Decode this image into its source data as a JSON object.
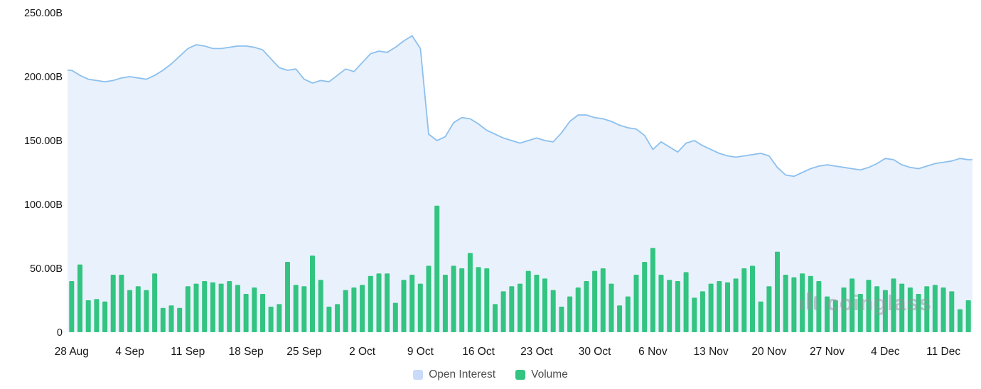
{
  "watermark": {
    "text": "coinglass"
  },
  "chart_data": {
    "type": "area",
    "title": "",
    "xlabel": "",
    "ylabel": "",
    "unit": "B",
    "grid": false,
    "legend_position": "bottom",
    "ylim": [
      0,
      250
    ],
    "y_ticks": [
      "250.00B",
      "200.00B",
      "150.00B",
      "100.00B",
      "50.00B",
      "0"
    ],
    "y_tick_values": [
      250,
      200,
      150,
      100,
      50,
      0
    ],
    "x_tick_labels": [
      "28 Aug",
      "4 Sep",
      "11 Sep",
      "18 Sep",
      "25 Sep",
      "2 Oct",
      "9 Oct",
      "16 Oct",
      "23 Oct",
      "30 Oct",
      "6 Nov",
      "13 Nov",
      "20 Nov",
      "27 Nov",
      "4 Dec",
      "11 Dec"
    ],
    "x_tick_indices": [
      0,
      7,
      14,
      21,
      28,
      35,
      42,
      49,
      56,
      63,
      70,
      77,
      84,
      91,
      98,
      105
    ],
    "x": [
      "28 Aug",
      "29 Aug",
      "30 Aug",
      "31 Aug",
      "1 Sep",
      "2 Sep",
      "3 Sep",
      "4 Sep",
      "5 Sep",
      "6 Sep",
      "7 Sep",
      "8 Sep",
      "9 Sep",
      "10 Sep",
      "11 Sep",
      "12 Sep",
      "13 Sep",
      "14 Sep",
      "15 Sep",
      "16 Sep",
      "17 Sep",
      "18 Sep",
      "19 Sep",
      "20 Sep",
      "21 Sep",
      "22 Sep",
      "23 Sep",
      "24 Sep",
      "25 Sep",
      "26 Sep",
      "27 Sep",
      "28 Sep",
      "29 Sep",
      "30 Sep",
      "1 Oct",
      "2 Oct",
      "3 Oct",
      "4 Oct",
      "5 Oct",
      "6 Oct",
      "7 Oct",
      "8 Oct",
      "9 Oct",
      "10 Oct",
      "11 Oct",
      "12 Oct",
      "13 Oct",
      "14 Oct",
      "15 Oct",
      "16 Oct",
      "17 Oct",
      "18 Oct",
      "19 Oct",
      "20 Oct",
      "21 Oct",
      "22 Oct",
      "23 Oct",
      "24 Oct",
      "25 Oct",
      "26 Oct",
      "27 Oct",
      "28 Oct",
      "29 Oct",
      "30 Oct",
      "31 Oct",
      "1 Nov",
      "2 Nov",
      "3 Nov",
      "4 Nov",
      "5 Nov",
      "6 Nov",
      "7 Nov",
      "8 Nov",
      "9 Nov",
      "10 Nov",
      "11 Nov",
      "12 Nov",
      "13 Nov",
      "14 Nov",
      "15 Nov",
      "16 Nov",
      "17 Nov",
      "18 Nov",
      "19 Nov",
      "20 Nov",
      "21 Nov",
      "22 Nov",
      "23 Nov",
      "24 Nov",
      "25 Nov",
      "26 Nov",
      "27 Nov",
      "28 Nov",
      "29 Nov",
      "30 Nov",
      "1 Dec",
      "2 Dec",
      "3 Dec",
      "4 Dec",
      "5 Dec",
      "6 Dec",
      "7 Dec",
      "8 Dec",
      "9 Dec",
      "10 Dec",
      "11 Dec",
      "12 Dec",
      "13 Dec",
      "14 Dec"
    ],
    "series": [
      {
        "name": "Open Interest",
        "type": "area",
        "color": "#8cc0ee",
        "fill": "#e9f1fc",
        "legend_color": "#c9dbf8",
        "unit": "B",
        "values": [
          205,
          201,
          198,
          197,
          196,
          197,
          199,
          200,
          199,
          198,
          201,
          205,
          210,
          216,
          222,
          225,
          224,
          222,
          222,
          223,
          224,
          224,
          223,
          221,
          214,
          207,
          205,
          206,
          198,
          195,
          197,
          196,
          201,
          206,
          204,
          211,
          218,
          220,
          219,
          223,
          228,
          232,
          222,
          155,
          150,
          153,
          164,
          168,
          167,
          163,
          158,
          155,
          152,
          150,
          148,
          150,
          152,
          150,
          149,
          156,
          165,
          170,
          170,
          168,
          167,
          165,
          162,
          160,
          159,
          154,
          143,
          149,
          145,
          141,
          148,
          150,
          146,
          143,
          140,
          138,
          137,
          138,
          139,
          140,
          138,
          129,
          123,
          122,
          125,
          128,
          130,
          131,
          130,
          129,
          128,
          127,
          129,
          132,
          136,
          135,
          131,
          129,
          128,
          130,
          132,
          133,
          134,
          136,
          135
        ]
      },
      {
        "name": "Volume",
        "type": "bar",
        "color": "#33c481",
        "legend_color": "#33c481",
        "unit": "B",
        "values": [
          40,
          53,
          25,
          26,
          24,
          45,
          45,
          33,
          36,
          33,
          46,
          19,
          21,
          19,
          36,
          38,
          40,
          39,
          38,
          40,
          37,
          30,
          35,
          30,
          20,
          22,
          55,
          37,
          36,
          60,
          41,
          20,
          22,
          33,
          35,
          37,
          44,
          46,
          46,
          23,
          41,
          45,
          38,
          52,
          99,
          45,
          52,
          50,
          62,
          51,
          50,
          22,
          32,
          36,
          38,
          48,
          45,
          42,
          33,
          20,
          28,
          35,
          40,
          48,
          50,
          38,
          21,
          28,
          45,
          55,
          66,
          45,
          41,
          40,
          47,
          27,
          32,
          38,
          40,
          39,
          42,
          50,
          52,
          24,
          36,
          63,
          45,
          43,
          46,
          44,
          40,
          28,
          25,
          35,
          42,
          30,
          41,
          36,
          33,
          42,
          38,
          35,
          30,
          36,
          37,
          35,
          32,
          18,
          25
        ]
      }
    ]
  }
}
